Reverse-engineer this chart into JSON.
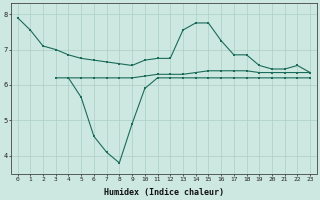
{
  "line1_x": [
    0,
    1,
    2,
    3,
    4,
    5,
    6,
    7,
    8,
    9,
    10,
    11,
    12,
    13,
    14,
    15,
    16,
    17,
    18,
    19,
    20,
    21,
    22,
    23
  ],
  "line1_y": [
    7.9,
    7.55,
    7.1,
    7.0,
    6.85,
    6.75,
    6.7,
    6.65,
    6.6,
    6.55,
    6.7,
    6.75,
    6.75,
    7.55,
    7.75,
    7.75,
    7.25,
    6.85,
    6.85,
    6.55,
    6.45,
    6.45,
    6.55,
    6.35
  ],
  "line2_x": [
    3,
    4,
    5,
    6,
    7,
    8,
    9,
    10,
    11,
    12,
    13,
    14,
    15,
    16,
    17,
    18,
    19,
    20,
    21,
    22,
    23
  ],
  "line2_y": [
    6.2,
    6.2,
    6.2,
    6.2,
    6.2,
    6.2,
    6.2,
    6.25,
    6.3,
    6.3,
    6.3,
    6.35,
    6.4,
    6.4,
    6.4,
    6.4,
    6.35,
    6.35,
    6.35,
    6.35,
    6.35
  ],
  "line3_x": [
    4,
    5,
    6,
    7,
    8,
    9,
    10,
    11,
    12,
    13,
    14,
    15,
    16,
    17,
    18,
    19,
    20,
    21,
    22,
    23
  ],
  "line3_y": [
    6.2,
    5.65,
    4.55,
    4.1,
    3.8,
    4.9,
    5.9,
    6.2,
    6.2,
    6.2,
    6.2,
    6.2,
    6.2,
    6.2,
    6.2,
    6.2,
    6.2,
    6.2,
    6.2,
    6.2
  ],
  "line_color": "#1a6b5a",
  "bg_color": "#cde8e0",
  "grid_color": "#aacfc5",
  "xlabel": "Humidex (Indice chaleur)",
  "xlim": [
    -0.5,
    23.5
  ],
  "ylim": [
    3.5,
    8.3
  ],
  "yticks": [
    4,
    5,
    6,
    7,
    8
  ],
  "xticks": [
    0,
    1,
    2,
    3,
    4,
    5,
    6,
    7,
    8,
    9,
    10,
    11,
    12,
    13,
    14,
    15,
    16,
    17,
    18,
    19,
    20,
    21,
    22,
    23
  ],
  "tick_fontsize": 4.5,
  "xlabel_fontsize": 6.0,
  "line_width": 0.8,
  "marker_size": 1.8
}
